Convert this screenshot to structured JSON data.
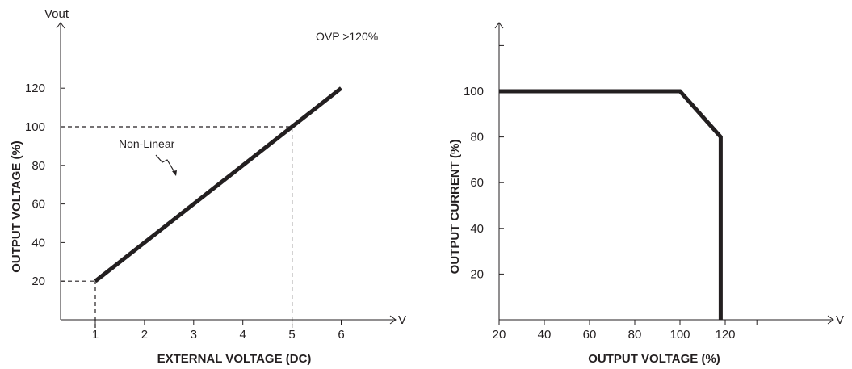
{
  "chart_data": [
    {
      "type": "line",
      "title": "",
      "xlabel": "EXTERNAL VOLTAGE (DC)",
      "ylabel": "OUTPUT VOLTAGE (%)",
      "x_unit": "V",
      "y_unit": "Vout",
      "xlim": [
        0.2,
        7.3
      ],
      "ylim": [
        0,
        128
      ],
      "xticks": [
        "1",
        "2",
        "3",
        "4",
        "5",
        "6"
      ],
      "yticks": [
        "20",
        "40",
        "60",
        "80",
        "100",
        "120"
      ],
      "series": [
        {
          "x": [
            1,
            6
          ],
          "y": [
            20,
            120
          ]
        }
      ],
      "reference_lines": [
        {
          "from": [
            0.2,
            20
          ],
          "to": [
            1,
            20
          ]
        },
        {
          "from": [
            1,
            0
          ],
          "to": [
            1,
            20
          ]
        },
        {
          "from": [
            0.2,
            100
          ],
          "to": [
            5,
            100
          ]
        },
        {
          "from": [
            5,
            0
          ],
          "to": [
            5,
            100
          ]
        }
      ],
      "annotations": [
        {
          "text": "OVP >120%"
        },
        {
          "text": "Non-Linear"
        }
      ],
      "grid": false,
      "color": "#231f20"
    },
    {
      "type": "line",
      "title": "",
      "xlabel": "OUTPUT VOLTAGE (%)",
      "ylabel": "OUTPUT CURRENT (%)",
      "x_unit": "V",
      "xlim": [
        20,
        138
      ],
      "ylim": [
        0,
        126
      ],
      "xticks": [
        "20",
        "40",
        "60",
        "80",
        "100",
        "120"
      ],
      "yticks": [
        "20",
        "40",
        "60",
        "80",
        "100"
      ],
      "series": [
        {
          "x": [
            20,
            100,
            118,
            118
          ],
          "y": [
            100,
            100,
            80,
            0
          ]
        }
      ],
      "grid": false,
      "color": "#231f20"
    }
  ]
}
